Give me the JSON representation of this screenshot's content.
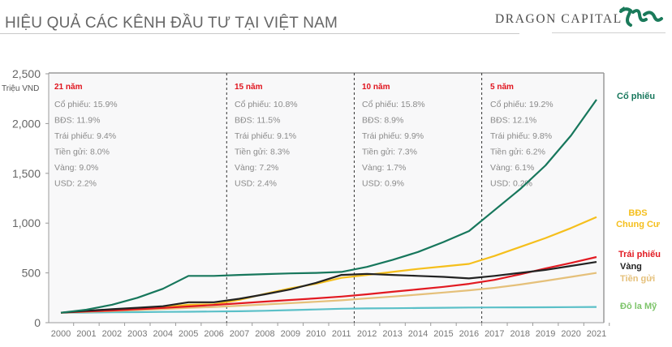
{
  "header": {
    "title": "HIỆU QUẢ CÁC KÊNH ĐẦU TƯ TẠI VIỆT NAM",
    "brand": "DRAGON CAPITAL",
    "logo_icon": "dragon-logo-icon",
    "brand_color": "#1a7a5a"
  },
  "chart_data": {
    "type": "line",
    "title": "HIỆU QUẢ CÁC KÊNH ĐẦU TƯ TẠI VIỆT NAM",
    "ylabel": "Triệu VND",
    "xlabel": "",
    "ylim": [
      0,
      2500
    ],
    "yticks": [
      0,
      500,
      1000,
      1500,
      2000,
      2500
    ],
    "ytick_labels": [
      "0",
      "500",
      "1,000",
      "1,500",
      "2,000",
      "2,500"
    ],
    "x": [
      "2000",
      "2001",
      "2002",
      "2003",
      "2004",
      "2005",
      "2006",
      "2007",
      "2008",
      "2009",
      "2010",
      "2011",
      "2012",
      "2013",
      "2014",
      "2015",
      "2016",
      "2017",
      "2018",
      "2019",
      "2020",
      "2021"
    ],
    "grid": false,
    "legend": "right (labels at line ends)",
    "dividers_after": [
      "2006",
      "2011",
      "2016"
    ],
    "series": [
      {
        "name": "Cổ phiếu",
        "label": "Cổ phiếu",
        "color": "#17775c",
        "values": [
          100,
          130,
          180,
          250,
          340,
          470,
          470,
          480,
          488,
          495,
          500,
          510,
          560,
          630,
          710,
          810,
          920,
          1130,
          1340,
          1580,
          1880,
          2240
        ]
      },
      {
        "name": "BĐS Chung Cư",
        "label": "BĐS\nChung Cư",
        "color": "#f5bf1c",
        "values": [
          100,
          115,
          128,
          140,
          155,
          180,
          185,
          230,
          290,
          345,
          390,
          450,
          480,
          510,
          540,
          565,
          590,
          670,
          760,
          850,
          950,
          1060
        ]
      },
      {
        "name": "Trái phiếu",
        "label": "Trái phiếu",
        "color": "#e21a22",
        "values": [
          100,
          112,
          122,
          135,
          148,
          163,
          178,
          195,
          212,
          228,
          244,
          262,
          285,
          310,
          335,
          360,
          390,
          430,
          485,
          545,
          600,
          660
        ]
      },
      {
        "name": "Vàng",
        "label": "Vàng",
        "color": "#222222",
        "values": [
          100,
          120,
          135,
          150,
          165,
          205,
          205,
          240,
          285,
          335,
          400,
          480,
          490,
          480,
          470,
          460,
          445,
          470,
          500,
          530,
          570,
          610
        ]
      },
      {
        "name": "Tiền gửi",
        "label": "Tiền gửi",
        "color": "#e5c07a",
        "values": [
          100,
          108,
          117,
          127,
          137,
          148,
          158,
          170,
          183,
          196,
          210,
          225,
          244,
          262,
          282,
          303,
          325,
          350,
          383,
          420,
          460,
          500
        ]
      },
      {
        "name": "Đô la Mỹ",
        "label": "Đô la Mỹ",
        "color": "#5bc0c8",
        "label_color": "#7dc46a",
        "values": [
          100,
          102,
          104,
          106,
          108,
          110,
          112,
          115,
          120,
          126,
          133,
          140,
          143,
          145,
          147,
          150,
          152,
          153,
          154,
          155,
          156,
          158
        ]
      }
    ],
    "annotations": [
      {
        "title": "21 năm",
        "items": [
          "Cổ phiếu: 15.9%",
          "BĐS: 11.9%",
          "Trái phiếu: 9.4%",
          "Tiền gửi: 8.0%",
          "Vàng: 9.0%",
          "USD: 2.2%"
        ]
      },
      {
        "title": "15 năm",
        "items": [
          "Cổ phiếu: 10.8%",
          "BĐS: 11.5%",
          "Trái phiếu: 9.1%",
          "Tiền gửi: 8.3%",
          "Vàng: 7.2%",
          "USD: 2.4%"
        ]
      },
      {
        "title": "10 năm",
        "items": [
          "Cổ phiếu: 15.8%",
          "BĐS: 8.9%",
          "Trái phiếu: 9.9%",
          "Tiền gửi: 7.3%",
          "Vàng: 1.7%",
          "USD: 0.9%"
        ]
      },
      {
        "title": "5 năm",
        "items": [
          "Cổ phiếu: 19.2%",
          "BĐS: 12.1%",
          "Trái phiếu: 9.8%",
          "Tiền gửi: 6.2%",
          "Vàng: 6.1%",
          "USD: 0.2%"
        ]
      }
    ]
  }
}
